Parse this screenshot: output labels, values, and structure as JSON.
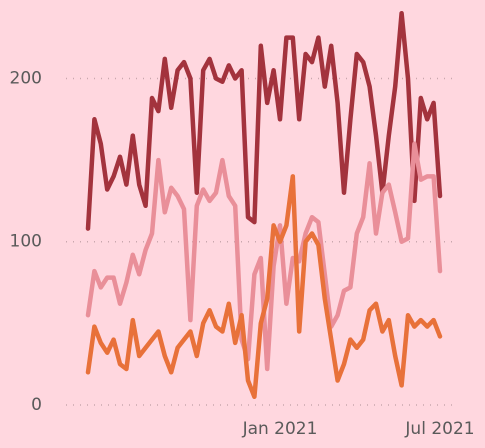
{
  "chart_data": {
    "type": "line",
    "categories": [
      null,
      null,
      null,
      null,
      null,
      null,
      null,
      null,
      null,
      null,
      null,
      null,
      null,
      null,
      null,
      null,
      null,
      null,
      null,
      null,
      null,
      null,
      null,
      null,
      null,
      null,
      null,
      null,
      null,
      null,
      "Jan 2021",
      null,
      null,
      null,
      null,
      null,
      null,
      null,
      null,
      null,
      null,
      null,
      null,
      null,
      null,
      null,
      null,
      null,
      null,
      null,
      null,
      null,
      null,
      null,
      null,
      "Jul 2021"
    ],
    "series": [
      {
        "color": "#a3333d",
        "values": [
          108,
          175,
          160,
          132,
          140,
          152,
          135,
          165,
          135,
          122,
          188,
          180,
          212,
          182,
          205,
          210,
          200,
          130,
          205,
          212,
          200,
          198,
          208,
          200,
          205,
          115,
          112,
          220,
          185,
          205,
          175,
          225,
          225,
          175,
          215,
          210,
          225,
          195,
          220,
          185,
          130,
          175,
          215,
          210,
          195,
          165,
          130,
          165,
          195,
          240,
          200,
          125,
          188,
          175,
          185,
          128
        ]
      },
      {
        "color": "#e98f99",
        "values": [
          55,
          82,
          72,
          78,
          78,
          62,
          75,
          92,
          80,
          95,
          105,
          150,
          118,
          133,
          128,
          120,
          52,
          122,
          132,
          125,
          130,
          150,
          128,
          122,
          40,
          28,
          80,
          90,
          22,
          85,
          110,
          62,
          90,
          88,
          105,
          115,
          112,
          80,
          48,
          55,
          70,
          72,
          105,
          115,
          148,
          105,
          130,
          135,
          118,
          100,
          102,
          160,
          138,
          140,
          140,
          82
        ]
      },
      {
        "color": "#e8713a",
        "values": [
          20,
          48,
          38,
          32,
          40,
          25,
          22,
          52,
          30,
          35,
          40,
          45,
          30,
          20,
          35,
          40,
          45,
          30,
          50,
          58,
          48,
          45,
          62,
          38,
          55,
          15,
          5,
          50,
          65,
          110,
          100,
          110,
          140,
          45,
          100,
          105,
          98,
          65,
          40,
          15,
          25,
          40,
          35,
          40,
          58,
          62,
          45,
          52,
          30,
          12,
          55,
          48,
          52,
          48,
          52,
          42
        ]
      }
    ],
    "ylim": [
      -8,
      245
    ],
    "yticks": [
      0,
      100,
      200
    ],
    "grid": true
  }
}
